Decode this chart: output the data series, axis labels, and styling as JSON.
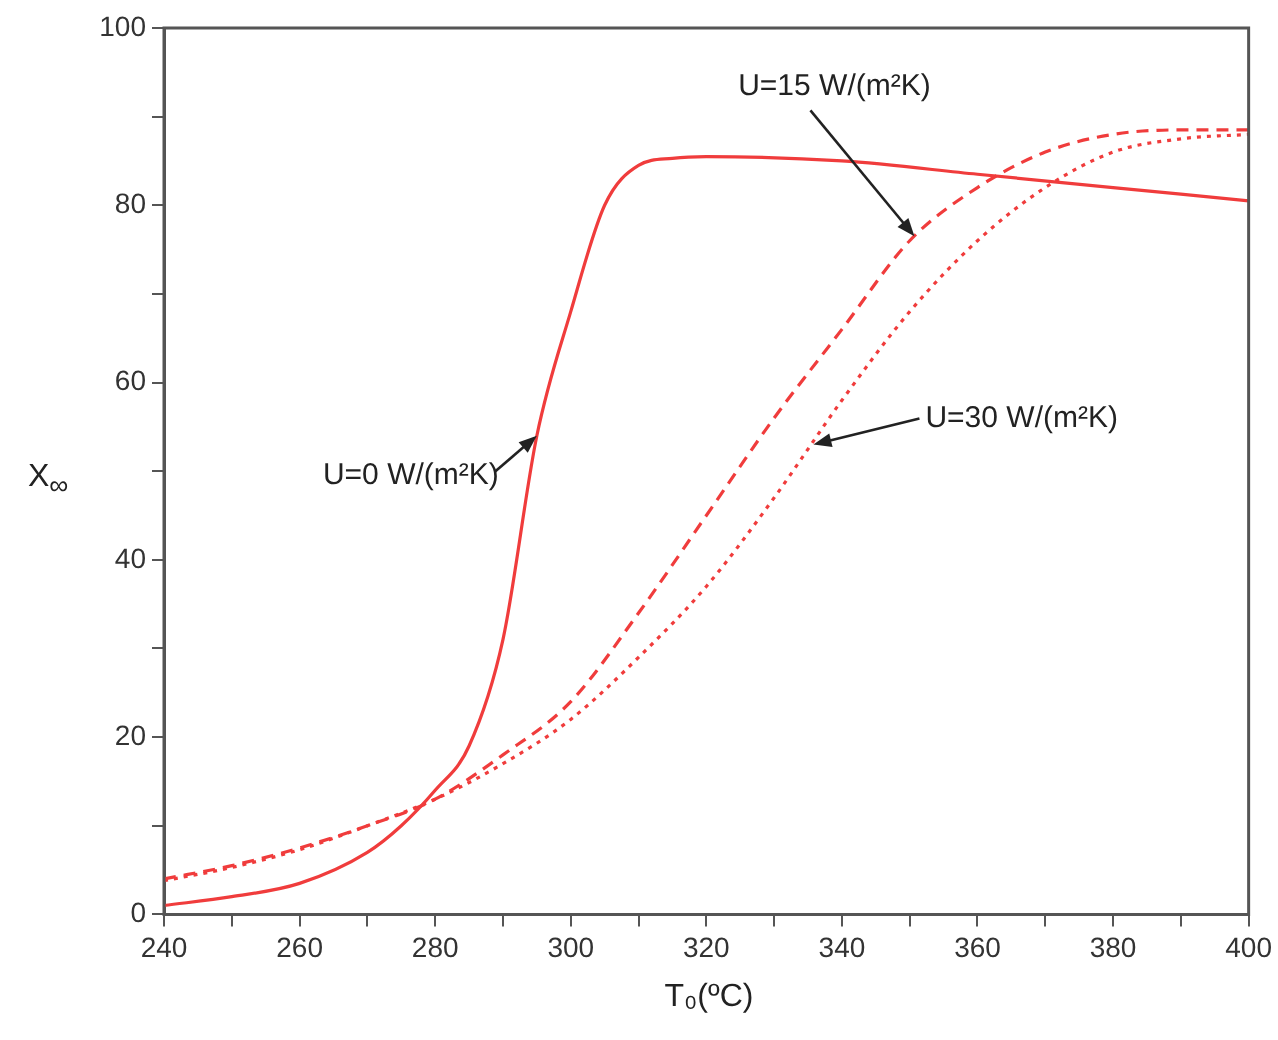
{
  "chart_data": {
    "type": "line",
    "xlabel": "T₀(ºC)",
    "ylabel": "X$_{∞}$",
    "xlim": [
      240,
      400
    ],
    "ylim": [
      0,
      100
    ],
    "xticks": [
      240,
      {
        "value": 250,
        "label": null
      },
      260,
      {
        "value": 270,
        "label": null
      },
      280,
      {
        "value": 290,
        "label": null
      },
      300,
      {
        "value": 310,
        "label": null
      },
      320,
      {
        "value": 330,
        "label": null
      },
      340,
      {
        "value": 350,
        "label": null
      },
      360,
      {
        "value": 370,
        "label": null
      },
      380,
      {
        "value": 390,
        "label": null
      },
      400
    ],
    "yticks": [
      0,
      {
        "value": 10,
        "label": null
      },
      20,
      {
        "value": 30,
        "label": null
      },
      40,
      {
        "value": 50,
        "label": null
      },
      60,
      {
        "value": 70,
        "label": null
      },
      80,
      {
        "value": 90,
        "label": null
      },
      100
    ],
    "grid": false,
    "legend": false,
    "marker": "none",
    "series": [
      {
        "color": "#f03c3c",
        "line_style": "solid",
        "x": [
          240,
          250,
          260,
          270,
          275,
          280,
          285,
          290,
          295,
          300,
          305,
          310,
          315,
          320,
          340,
          360,
          380,
          400
        ],
        "values": [
          1,
          2,
          3.5,
          7,
          10,
          14,
          19,
          31,
          54,
          68,
          80,
          84.5,
          85.3,
          85.5,
          85,
          83.5,
          82,
          80.5
        ]
      },
      {
        "color": "#f03c3c",
        "line_style": "dashed",
        "x": [
          240,
          250,
          260,
          270,
          280,
          290,
          300,
          310,
          320,
          330,
          340,
          350,
          360,
          370,
          380,
          390,
          400
        ],
        "values": [
          4,
          5.5,
          7.5,
          10,
          13,
          18,
          24,
          34,
          45,
          56,
          66,
          76,
          82,
          86,
          88,
          88.5,
          88.5
        ]
      },
      {
        "color": "#f03c3c",
        "line_style": "dotted",
        "x": [
          240,
          250,
          260,
          270,
          280,
          290,
          300,
          310,
          320,
          330,
          340,
          350,
          360,
          370,
          380,
          390,
          400
        ],
        "values": [
          3.8,
          5.3,
          7.3,
          10,
          13,
          17,
          22,
          29,
          37,
          47,
          58,
          68,
          76,
          82,
          86,
          87.5,
          88
        ]
      }
    ],
    "annotations": [
      {
        "text": "U=0 W/(m²K)",
        "x": 295,
        "y": 54
      },
      {
        "text": "U=15 W/(m²K)",
        "x": 350.7,
        "y": 76.5
      },
      {
        "text": "U=30 W/(m²K)",
        "x": 335.8,
        "y": 53
      }
    ]
  }
}
